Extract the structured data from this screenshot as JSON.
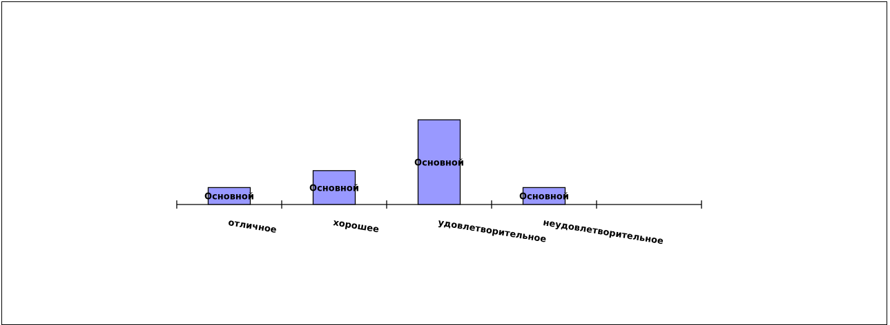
{
  "chart_data": {
    "type": "bar",
    "categories": [
      "отличное",
      "хорошее",
      "удовлетворительное",
      "неудовлетворительное",
      ""
    ],
    "series": [
      {
        "name": "Основной",
        "values": [
          1,
          2,
          5,
          1,
          0
        ]
      }
    ],
    "data_labels": [
      "Основной",
      "Основной",
      "Основной",
      "Основной"
    ],
    "title": "",
    "xlabel": "",
    "ylabel": "",
    "ylim": [
      0,
      5
    ],
    "grid": false,
    "legend": "none",
    "bar_color": "#9999ff",
    "bar_edge_color": "#000000"
  }
}
